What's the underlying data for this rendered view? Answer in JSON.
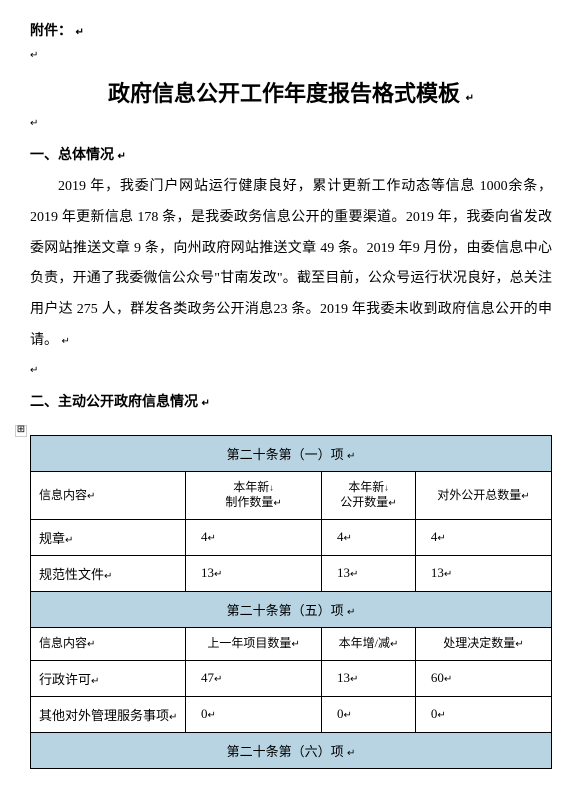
{
  "attachment_label": "附件：",
  "title": "政府信息公开工作年度报告格式模板",
  "section1_header": "一、总体情况",
  "paragraph1": "2019 年，我委门户网站运行健康良好，累计更新工作动态等信息 1000余条，2019 年更新信息 178 条，是我委政务信息公开的重要渠道。2019 年，我委向省发改委网站推送文章 9 条，向州政府网站推送文章 49 条。2019 年9 月份，由委信息中心负责，开通了我委微信公众号\"甘南发改\"。截至目前，公众号运行状况良好，总关注用户达 275 人，群发各类政务公开消息23 条。2019 年我委未收到政府信息公开的申请。",
  "section2_header": "二、主动公开政府信息情况",
  "word_mark_para": "↵",
  "table": {
    "sections": [
      {
        "header": "第二十条第（一）项",
        "columns": [
          "信息内容",
          "本年新\n制作数量",
          "本年新\n公开数量",
          "对外公开总数量"
        ],
        "rows": [
          {
            "label": "规章",
            "c1": "4",
            "c2": "4",
            "c3": "4"
          },
          {
            "label": "规范性文件",
            "c1": "13",
            "c2": "13",
            "c3": "13"
          }
        ]
      },
      {
        "header": "第二十条第（五）项",
        "columns": [
          "信息内容",
          "上一年项目数量",
          "本年增/减",
          "处理决定数量"
        ],
        "rows": [
          {
            "label": "行政许可",
            "c1": "47",
            "c2": "13",
            "c3": "60"
          },
          {
            "label": "其他对外管理服务事项",
            "c1": "0",
            "c2": "0",
            "c3": "0"
          }
        ]
      },
      {
        "header": "第二十条第（六）项"
      }
    ],
    "header_bg": "#b8d4e3",
    "border_color": "#000000"
  },
  "marker_symbol": "↵",
  "arrow_symbol": "↓"
}
